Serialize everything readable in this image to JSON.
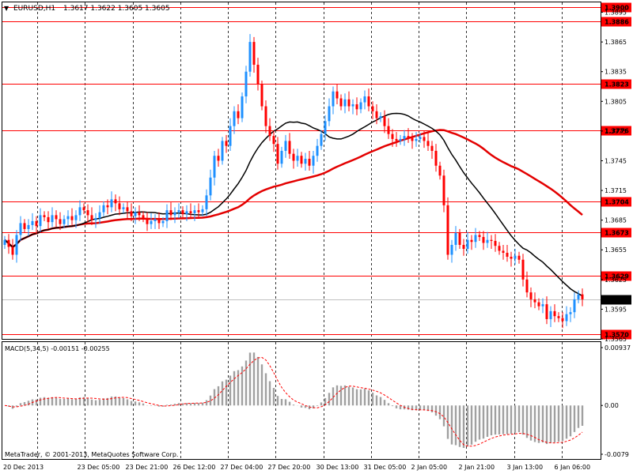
{
  "header": {
    "dropdown_glyph": "▼",
    "symbol": "EURUSD,H1",
    "ohlc": "1.3617 1.3622 1.3605 1.3605"
  },
  "indicator": {
    "title": "MACD(5,34,5) -0.00151 -0.00255",
    "copyright": "MetaTrader, © 2001-2013, MetaQuotes Software Corp."
  },
  "colors": {
    "bull": "#1e90ff",
    "bear": "#ff0000",
    "level_line": "#ff0000",
    "ma_red": "#e30000",
    "ma_black": "#000000",
    "histogram": "#a0a0a0",
    "signal": "#ff0000",
    "grid": "#000000",
    "current_price_bg": "#000000"
  },
  "chart_data": {
    "type": "candlestick",
    "title": "EURUSD,H1",
    "ylim": [
      1.3565,
      1.3905
    ],
    "time_labels": [
      "20 Dec 2013",
      "23 Dec 05:00",
      "23 Dec 21:00",
      "26 Dec 12:00",
      "27 Dec 04:00",
      "27 Dec 20:00",
      "30 Dec 13:00",
      "31 Dec 05:00",
      "2 Jan 05:00",
      "2 Jan 21:00",
      "3 Jan 13:00",
      "6 Jan 06:00"
    ],
    "price_ticks": [
      "1.3895",
      "1.3865",
      "1.3835",
      "1.3805",
      "1.3775",
      "1.3745",
      "1.3715",
      "1.3685",
      "1.3655",
      "1.3625",
      "1.3595",
      "1.3565"
    ],
    "levels": [
      "1.3900",
      "1.3886",
      "1.3823",
      "1.3776",
      "1.3704",
      "1.3673",
      "1.3629",
      "1.3570"
    ],
    "current_price": "1.3605",
    "close": [
      1.3665,
      1.3658,
      1.365,
      1.367,
      1.3682,
      1.3676,
      1.368,
      1.3684,
      1.3679,
      1.369,
      1.3688,
      1.3683,
      1.369,
      1.3686,
      1.3681,
      1.3686,
      1.3689,
      1.3685,
      1.369,
      1.3698,
      1.3695,
      1.369,
      1.3685,
      1.3687,
      1.3693,
      1.37,
      1.3698,
      1.3706,
      1.3702,
      1.3696,
      1.3698,
      1.3694,
      1.3689,
      1.3693,
      1.369,
      1.3687,
      1.3681,
      1.3684,
      1.3686,
      1.3682,
      1.3684,
      1.3695,
      1.369,
      1.3693,
      1.3695,
      1.3691,
      1.3694,
      1.3692,
      1.3695,
      1.3693,
      1.3696,
      1.371,
      1.3728,
      1.375,
      1.3745,
      1.3765,
      1.376,
      1.378,
      1.3795,
      1.3788,
      1.381,
      1.3835,
      1.3865,
      1.3842,
      1.3822,
      1.38,
      1.378,
      1.377,
      1.3762,
      1.3742,
      1.3755,
      1.3765,
      1.3752,
      1.3745,
      1.375,
      1.3742,
      1.3747,
      1.374,
      1.375,
      1.376,
      1.3772,
      1.3785,
      1.38,
      1.3815,
      1.3808,
      1.38,
      1.3807,
      1.38,
      1.3802,
      1.3797,
      1.3804,
      1.381,
      1.38,
      1.3795,
      1.3788,
      1.379,
      1.378,
      1.3772,
      1.3767,
      1.3765,
      1.3767,
      1.377,
      1.3768,
      1.3765,
      1.3767,
      1.3769,
      1.3765,
      1.376,
      1.3755,
      1.374,
      1.373,
      1.37,
      1.365,
      1.366,
      1.3672,
      1.366,
      1.3656,
      1.3665,
      1.3663,
      1.367,
      1.3668,
      1.3662,
      1.3665,
      1.3664,
      1.3659,
      1.3654,
      1.3652,
      1.3648,
      1.3646,
      1.3649,
      1.3645,
      1.3625,
      1.3612,
      1.3605,
      1.3602,
      1.3598,
      1.36,
      1.3585,
      1.3593,
      1.3588,
      1.3586,
      1.3583,
      1.359,
      1.3592,
      1.3605,
      1.361,
      1.3605
    ],
    "macd": {
      "name": "MACD(5,34,5)",
      "ylim": [
        -0.0079,
        0.00937
      ],
      "ticks": [
        "0.00937",
        "0.00",
        "-0.0079"
      ],
      "values": {
        "main": "-0.00151",
        "signal": "-0.00255"
      }
    }
  }
}
